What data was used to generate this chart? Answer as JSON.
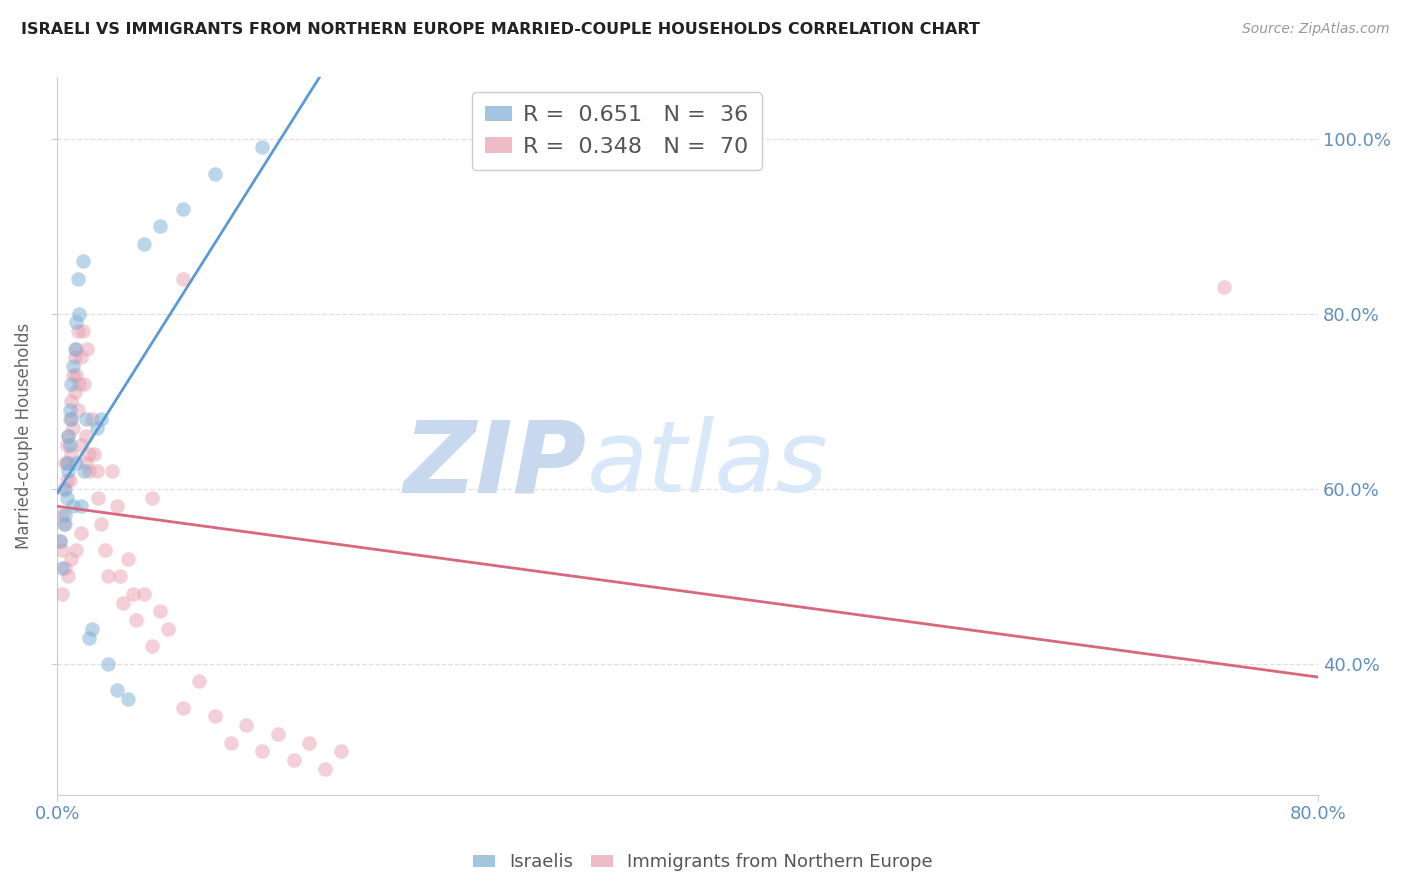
{
  "title": "ISRAELI VS IMMIGRANTS FROM NORTHERN EUROPE MARRIED-COUPLE HOUSEHOLDS CORRELATION CHART",
  "source": "Source: ZipAtlas.com",
  "ylabel": "Married-couple Households",
  "legend1_label": "R =  0.651   N =  36",
  "legend2_label": "R =  0.348   N =  70",
  "blue_color": "#7bafd4",
  "pink_color": "#e8a0b0",
  "line_blue": "#5b9bd5",
  "line_pink": "#d9687e",
  "watermark_zip": "ZIP",
  "watermark_atlas": "atlas",
  "watermark_color_zip": "#c8d8ee",
  "watermark_color_atlas": "#d8e8f8",
  "background_color": "#ffffff",
  "grid_color": "#d8d8d8",
  "axis_color": "#cccccc",
  "right_label_color": "#6090c0",
  "title_color": "#222222",
  "source_color": "#999999",
  "dot_alpha": 0.5,
  "dot_size": 110,
  "xlim": [
    0.0,
    0.8
  ],
  "ylim": [
    0.25,
    1.07
  ],
  "yticks": [
    0.4,
    0.6,
    0.8,
    1.0
  ],
  "xticks": [
    0.0,
    0.8
  ],
  "israelis_x": [
    0.002,
    0.003,
    0.004,
    0.005,
    0.005,
    0.006,
    0.006,
    0.007,
    0.007,
    0.008,
    0.008,
    0.009,
    0.009,
    0.01,
    0.01,
    0.011,
    0.012,
    0.012,
    0.013,
    0.014,
    0.015,
    0.016,
    0.017,
    0.018,
    0.02,
    0.022,
    0.025,
    0.028,
    0.032,
    0.038,
    0.045,
    0.055,
    0.065,
    0.08,
    0.1,
    0.13
  ],
  "israelis_y": [
    0.54,
    0.51,
    0.56,
    0.6,
    0.57,
    0.63,
    0.59,
    0.66,
    0.62,
    0.65,
    0.69,
    0.68,
    0.72,
    0.58,
    0.74,
    0.76,
    0.79,
    0.63,
    0.84,
    0.8,
    0.58,
    0.86,
    0.62,
    0.68,
    0.43,
    0.44,
    0.67,
    0.68,
    0.4,
    0.37,
    0.36,
    0.88,
    0.9,
    0.92,
    0.96,
    0.99
  ],
  "immigrants_x": [
    0.002,
    0.003,
    0.003,
    0.004,
    0.005,
    0.005,
    0.006,
    0.006,
    0.007,
    0.007,
    0.008,
    0.008,
    0.009,
    0.009,
    0.01,
    0.01,
    0.011,
    0.011,
    0.012,
    0.012,
    0.013,
    0.013,
    0.014,
    0.015,
    0.015,
    0.016,
    0.017,
    0.018,
    0.019,
    0.02,
    0.02,
    0.022,
    0.023,
    0.025,
    0.026,
    0.028,
    0.03,
    0.032,
    0.035,
    0.038,
    0.04,
    0.042,
    0.045,
    0.048,
    0.05,
    0.055,
    0.06,
    0.065,
    0.07,
    0.08,
    0.09,
    0.1,
    0.11,
    0.12,
    0.13,
    0.14,
    0.15,
    0.16,
    0.17,
    0.18,
    0.003,
    0.005,
    0.007,
    0.009,
    0.012,
    0.015,
    0.018,
    0.06,
    0.08,
    0.74
  ],
  "immigrants_y": [
    0.54,
    0.57,
    0.53,
    0.6,
    0.63,
    0.56,
    0.65,
    0.61,
    0.66,
    0.63,
    0.61,
    0.68,
    0.64,
    0.7,
    0.73,
    0.67,
    0.75,
    0.71,
    0.76,
    0.73,
    0.78,
    0.69,
    0.72,
    0.75,
    0.65,
    0.78,
    0.72,
    0.66,
    0.76,
    0.64,
    0.62,
    0.68,
    0.64,
    0.62,
    0.59,
    0.56,
    0.53,
    0.5,
    0.62,
    0.58,
    0.5,
    0.47,
    0.52,
    0.48,
    0.45,
    0.48,
    0.42,
    0.46,
    0.44,
    0.35,
    0.38,
    0.34,
    0.31,
    0.33,
    0.3,
    0.32,
    0.29,
    0.31,
    0.28,
    0.3,
    0.48,
    0.51,
    0.5,
    0.52,
    0.53,
    0.55,
    0.63,
    0.59,
    0.84,
    0.83
  ]
}
